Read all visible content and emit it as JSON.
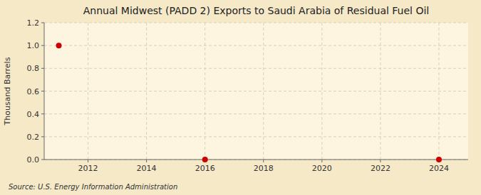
{
  "chart_data": {
    "type": "scatter",
    "title": "Annual Midwest (PADD 2) Exports to Saudi Arabia of Residual Fuel Oil",
    "ylabel": "Thousand Barrels",
    "annotations": [
      "Source: U.S. Energy Information Administration"
    ],
    "x": [
      2011,
      2016,
      2024
    ],
    "values": [
      1.0,
      0.0,
      0.0
    ],
    "color": "#cc0000",
    "xlim": [
      2010.5,
      2025
    ],
    "ylim": [
      0.0,
      1.2
    ],
    "xticks": [
      2012,
      2014,
      2016,
      2018,
      2020,
      2022,
      2024
    ],
    "yticks": [
      {
        "value": 0.0,
        "label": "0.0"
      },
      0.2,
      0.4,
      0.6,
      0.8,
      {
        "value": 1.0,
        "label": "1.0"
      },
      1.2
    ],
    "grid": true
  }
}
